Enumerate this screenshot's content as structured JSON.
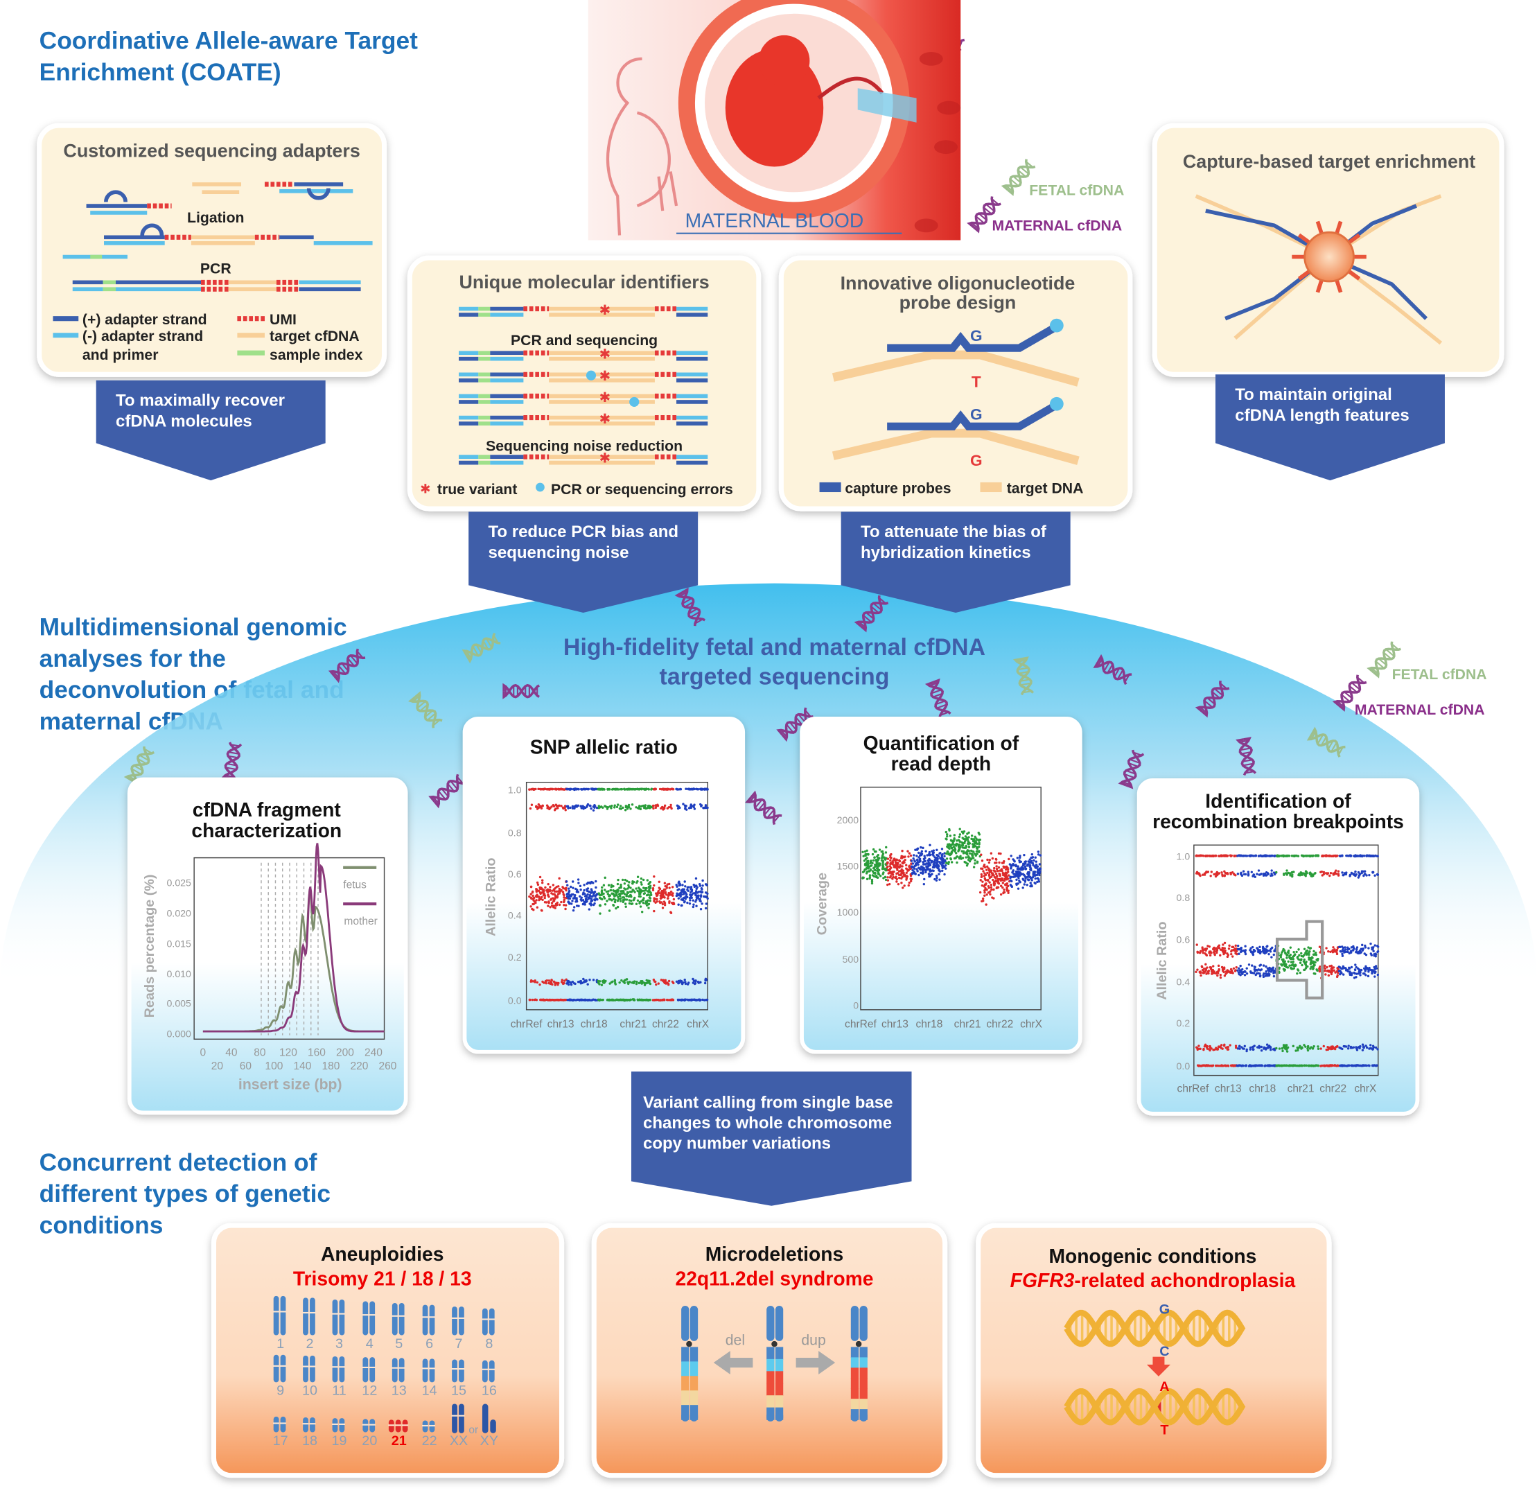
{
  "header": {
    "title_lines": [
      "Coordinative Allele-aware Target",
      "Enrichment (COATE)"
    ]
  },
  "illustration": {
    "label": "MATERNAL BLOOD",
    "legend": [
      "FETAL cfDNA",
      "MATERNAL cfDNA"
    ]
  },
  "enrichment_panels": [
    {
      "title_lines": [
        "Customized sequencing adapters"
      ],
      "labels": [
        "Ligation",
        "PCR"
      ],
      "legend": [
        "(+) adapter strand",
        "(-) adapter strand",
        "and primer",
        "UMI",
        "target cfDNA",
        "sample index"
      ],
      "benefit_lines": [
        "To maximally recover",
        "cfDNA molecules"
      ]
    },
    {
      "title_lines": [
        "Unique molecular identifiers"
      ],
      "labels": [
        "PCR and sequencing",
        "Sequencing noise reduction"
      ],
      "legend": [
        "true variant",
        "PCR or sequencing errors"
      ],
      "benefit_lines": [
        "To reduce PCR bias and",
        "sequencing noise"
      ]
    },
    {
      "title_lines": [
        "Innovative oligonucleotide",
        "probe design"
      ],
      "labels": [
        "G",
        "T",
        "G",
        "G"
      ],
      "legend": [
        "capture probes",
        "target DNA"
      ],
      "benefit_lines": [
        "To attenuate the bias of",
        "hybridization kinetics"
      ]
    },
    {
      "title_lines": [
        "Capture-based target enrichment"
      ],
      "benefit_lines": [
        "To maintain original",
        "cfDNA length features"
      ]
    }
  ],
  "analysis": {
    "heading_lines": [
      "Multidimensional genomic",
      "analyses for the",
      "deconvolution of fetal and",
      "maternal cfDNA"
    ],
    "sequencing_lines": [
      "High-fidelity fetal and maternal cfDNA",
      "targeted sequencing"
    ],
    "legend": [
      "FETAL cfDNA",
      "MATERNAL cfDNA"
    ],
    "plots": [
      {
        "title_lines": [
          "cfDNA fragment",
          "characterization"
        ],
        "y_label": "Reads percentage (%)",
        "y_ticks": [
          "0.025",
          "0.020",
          "0.015",
          "0.010",
          "0.005",
          "0.000"
        ],
        "x_ticks": [
          "0",
          "40",
          "80",
          "120",
          "160",
          "200",
          "240"
        ],
        "x_ticks_lower": [
          "20",
          "60",
          "100",
          "140",
          "180",
          "220",
          "260"
        ],
        "x_label": "insert size (bp)",
        "legend": [
          "fetus",
          "mother"
        ]
      },
      {
        "title_lines": [
          "SNP allelic ratio"
        ],
        "y_label": "Allelic Ratio",
        "y_ticks": [
          "1.0",
          "0.8",
          "0.6",
          "0.4",
          "0.2",
          "0.0"
        ],
        "x_ticks": [
          "chrRef",
          "chr13",
          "chr18",
          "chr21",
          "chr22",
          "chrX"
        ]
      },
      {
        "title_lines": [
          "Quantification of",
          "read depth"
        ],
        "y_label": "Coverage",
        "y_ticks": [
          "2000",
          "1500",
          "1000",
          "500",
          "0"
        ],
        "x_ticks": [
          "chrRef",
          "chr13",
          "chr18",
          "chr21",
          "chr22",
          "chrX"
        ]
      },
      {
        "title_lines": [
          "Identification of",
          "recombination breakpoints"
        ],
        "y_label": "Allelic Ratio",
        "y_ticks": [
          "1.0",
          "0.8",
          "0.6",
          "0.4",
          "0.2",
          "0.0"
        ],
        "x_ticks": [
          "chrRef",
          "chr13",
          "chr18",
          "chr21",
          "chr22",
          "chrX"
        ]
      }
    ]
  },
  "variant_calling_lines": [
    "Variant calling from single base",
    "changes to whole chromosome",
    "copy number variations"
  ],
  "detection": {
    "heading_lines": [
      "Concurrent detection of",
      "different types of genetic",
      "conditions"
    ],
    "panels": [
      {
        "title": "Aneuploidies",
        "subtitle": "Trisomy 21 / 18 / 13",
        "chromosomes": [
          "1",
          "2",
          "3",
          "4",
          "5",
          "6",
          "7",
          "8",
          "9",
          "10",
          "11",
          "12",
          "13",
          "14",
          "15",
          "16",
          "17",
          "18",
          "19",
          "20",
          "21",
          "22"
        ],
        "sex_chromosomes": [
          "XX",
          "or",
          "XY"
        ]
      },
      {
        "title": "Microdeletions",
        "subtitle": "22q11.2del syndrome",
        "labels": [
          "del",
          "dup"
        ]
      },
      {
        "title": "Monogenic conditions",
        "subtitle_gene": "FGFR3",
        "subtitle_rest": "-related achondroplasia",
        "bases": [
          "G",
          "C",
          "A",
          "T"
        ]
      }
    ]
  }
}
